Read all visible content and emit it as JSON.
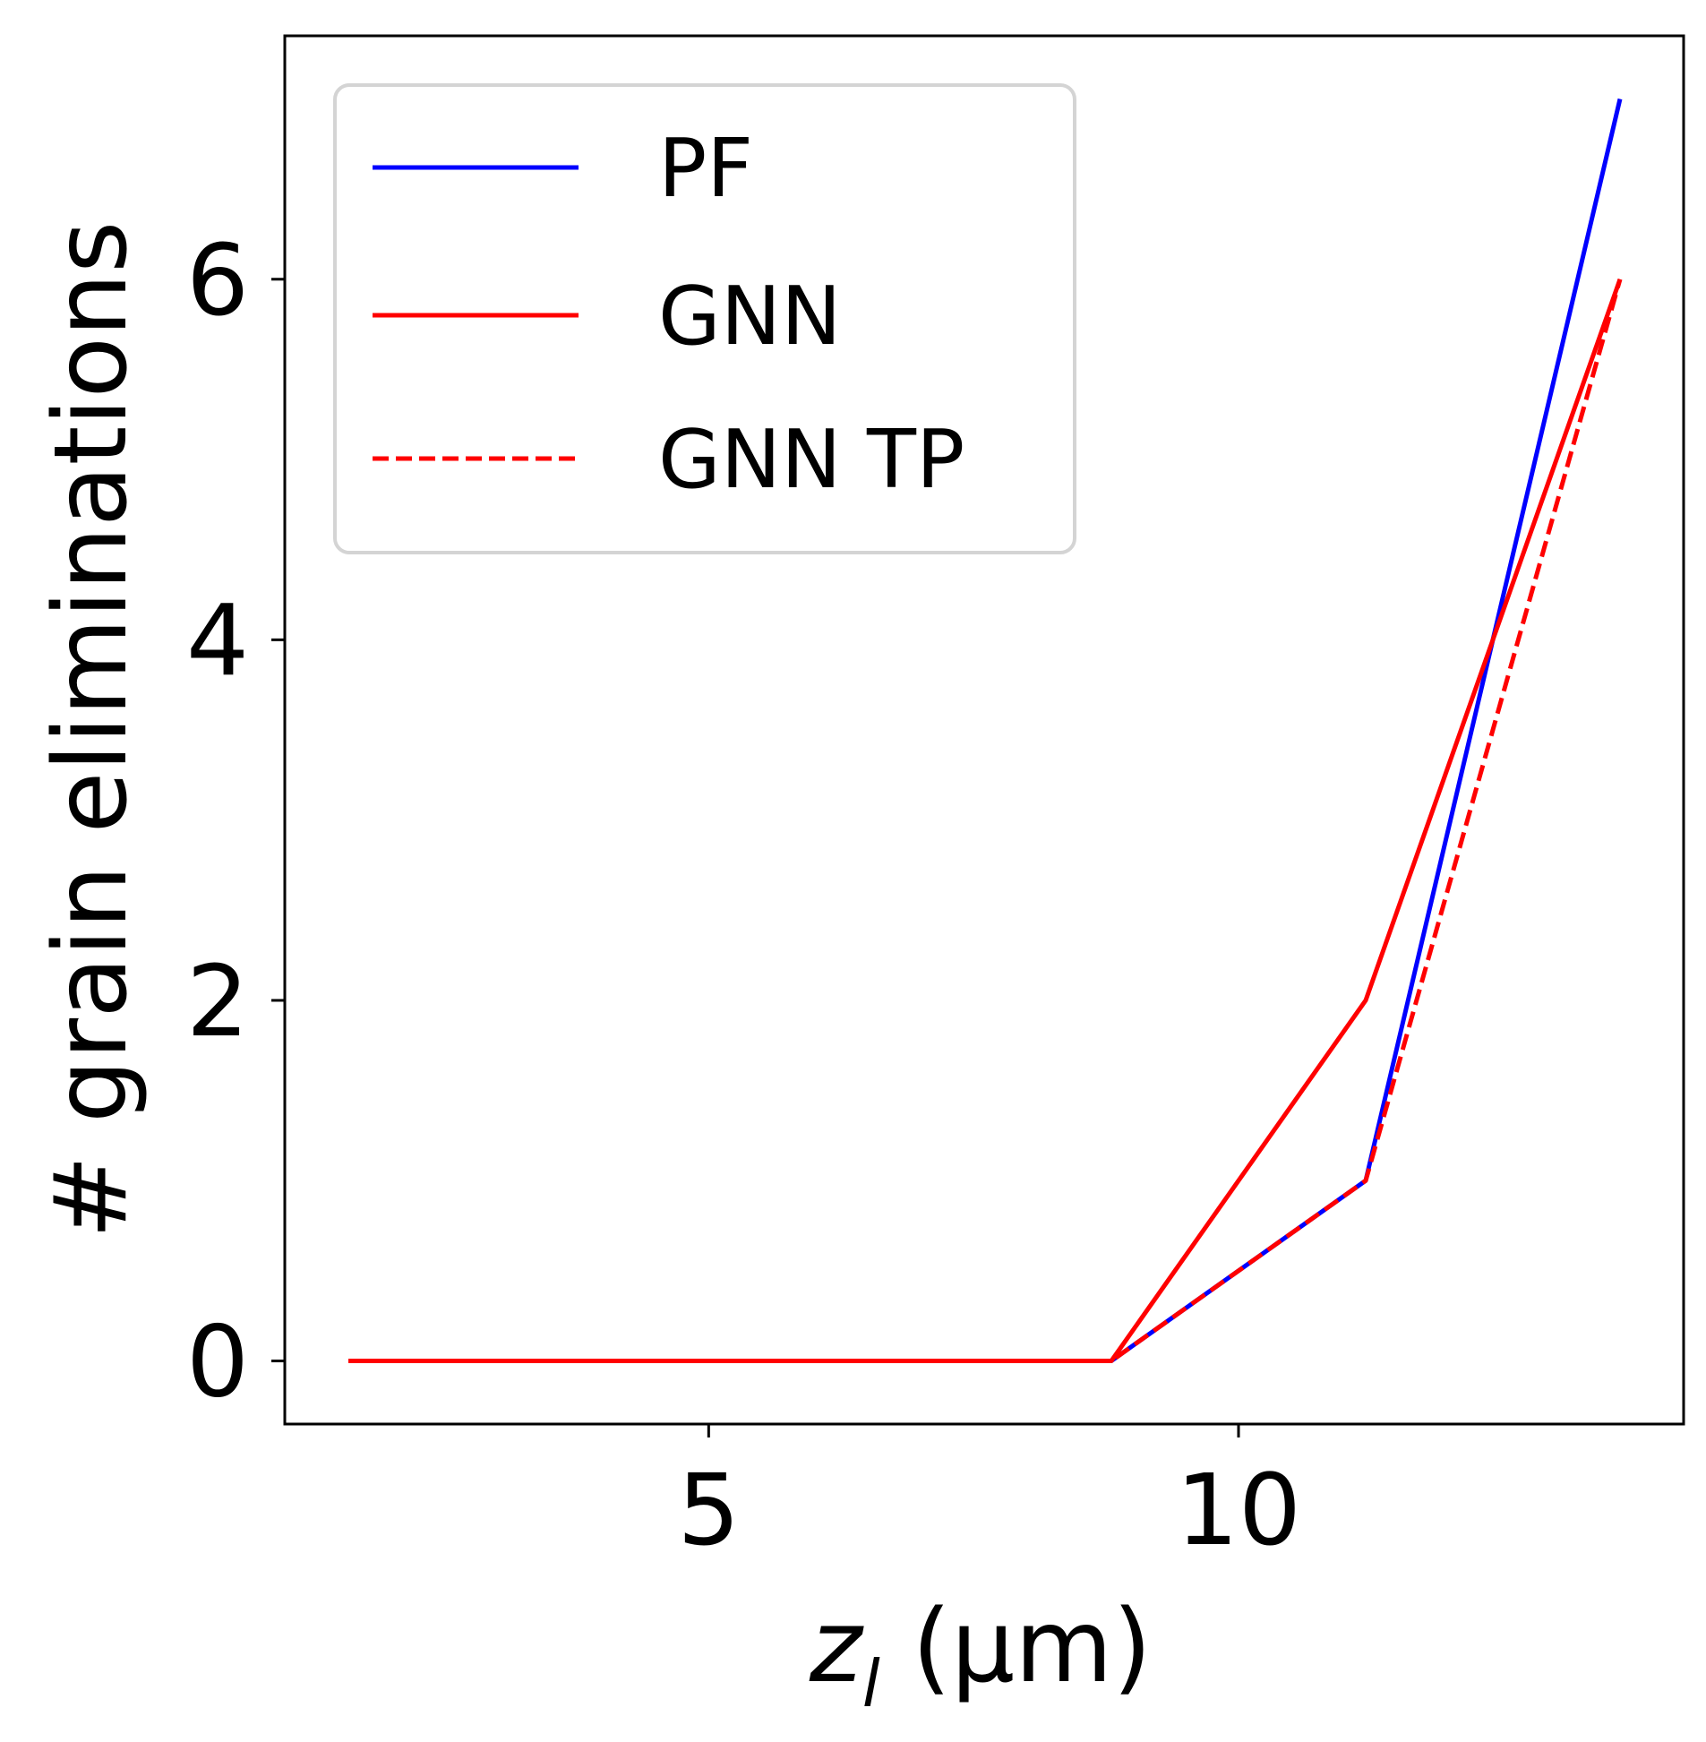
{
  "chart_data": {
    "type": "line",
    "xlabel": "z_l (μm)",
    "xlabel_parts": {
      "var": "z",
      "sub": "l",
      "unit": " (μm)"
    },
    "ylabel": "# grain eliminations",
    "xlim": [
      1.0,
      14.2
    ],
    "ylim": [
      -0.35,
      7.35
    ],
    "xticks": [
      5,
      10
    ],
    "yticks": [
      0,
      2,
      4,
      6
    ],
    "grid": false,
    "legend_position": "top-left",
    "series": [
      {
        "name": "PF",
        "color": "#0000ff",
        "dash": "solid",
        "x": [
          1.6,
          8.8,
          11.2,
          13.6
        ],
        "y": [
          0,
          0,
          1,
          7
        ]
      },
      {
        "name": "GNN",
        "color": "#ff0000",
        "dash": "solid",
        "x": [
          1.6,
          8.8,
          11.2,
          13.6
        ],
        "y": [
          0,
          0,
          2,
          6
        ]
      },
      {
        "name": "GNN TP",
        "color": "#ff0000",
        "dash": "dashed",
        "x": [
          1.6,
          8.8,
          11.2,
          13.6
        ],
        "y": [
          0,
          0,
          1,
          6
        ]
      }
    ]
  }
}
